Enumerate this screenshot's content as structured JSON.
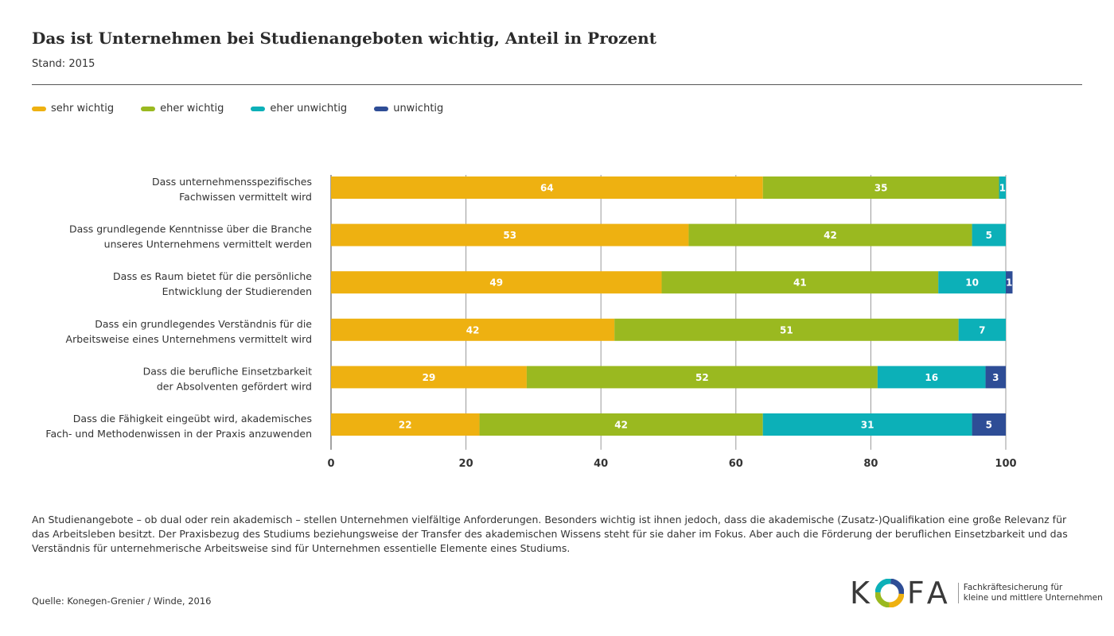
{
  "header": {
    "title": "Das ist Unternehmen bei Studienangeboten wichtig, Anteil in Prozent",
    "subtitle": "Stand: 2015"
  },
  "chart_data": {
    "type": "bar",
    "orientation": "horizontal",
    "stacked": true,
    "categories": [
      [
        "Dass unternehmensspezifisches",
        "Fachwissen vermittelt wird"
      ],
      [
        "Dass grundlegende Kenntnisse über die Branche",
        "unseres Unternehmens vermittelt werden"
      ],
      [
        "Dass es Raum bietet für die persönliche",
        "Entwicklung der Studierenden"
      ],
      [
        "Dass ein grundlegendes Verständnis für die ",
        "Arbeitsweise eines Unternehmens vermittelt wird"
      ],
      [
        "Dass die berufliche Einsetzbarkeit",
        "der Absolventen gefördert wird"
      ],
      [
        "Dass die Fähigkeit eingeübt wird, akademisches",
        "Fach- und Methodenwissen in der Praxis anzuwenden"
      ]
    ],
    "series": [
      {
        "name": "sehr wichtig",
        "color": "#eeb111",
        "values": [
          64,
          53,
          49,
          42,
          29,
          22
        ]
      },
      {
        "name": "eher wichtig",
        "color": "#9ab920",
        "values": [
          35,
          42,
          41,
          51,
          52,
          42
        ]
      },
      {
        "name": "eher unwichtig",
        "color": "#0cb0b8",
        "values": [
          1,
          5,
          10,
          7,
          16,
          31
        ]
      },
      {
        "name": "unwichtig",
        "color": "#2e4d96",
        "values": [
          0,
          0,
          1,
          0,
          3,
          5
        ]
      }
    ],
    "xlim": [
      0,
      100
    ],
    "xticks": [
      "0",
      "20",
      "40",
      "60",
      "80",
      "100"
    ],
    "grid": true,
    "legend": "top-left"
  },
  "description": "An Studienangebote – ob dual oder rein akademisch – stellen Unternehmen vielfältige Anforderungen. Besonders wichtig ist ihnen jedoch, dass die akademische (Zusatz-)Qualifikation eine große Relevanz für das Arbeitsleben besitzt. Der Praxisbezug des Studiums beziehungsweise der Transfer des akademischen Wissens steht für sie daher im Fokus. Aber auch die Förderung der beruflichen Einsetzbarkeit und das Verständnis für unternehmerische Arbeitsweise sind für Unternehmen essentielle Elemente eines Studiums.",
  "source": "Quelle: Konegen-Grenier / Winde, 2016",
  "logo": {
    "letters": [
      "K",
      "F",
      "A"
    ],
    "tagline_1": "Fachkräftesicherung für",
    "tagline_2": "kleine und mittlere Unternehmen"
  }
}
